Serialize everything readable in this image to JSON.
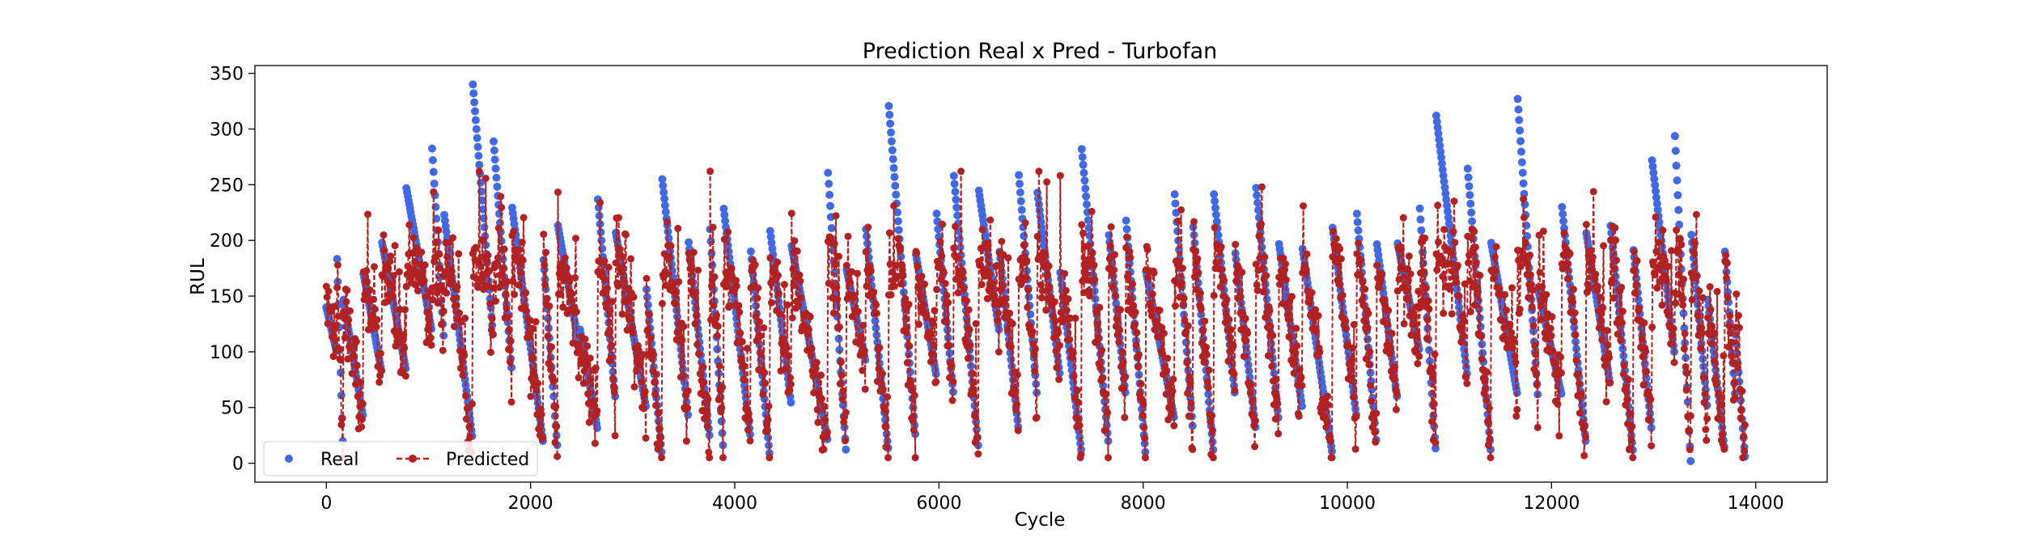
{
  "chart_data": {
    "type": "scatter",
    "title": "Prediction Real x Pred - Turbofan",
    "xlabel": "Cycle",
    "ylabel": "RUL",
    "xlim": [
      -700,
      14700
    ],
    "ylim": [
      -17,
      357
    ],
    "xticks": [
      0,
      2000,
      4000,
      6000,
      8000,
      10000,
      12000,
      14000
    ],
    "yticks": [
      0,
      50,
      100,
      150,
      200,
      250,
      300,
      350
    ],
    "grid": false,
    "legend_position": "lower-left",
    "n_points": 13900,
    "series": [
      {
        "name": "Real",
        "style": "markers",
        "color": "#4169e1",
        "description": "sawtooth segments: each engine's RUL decreases linearly from a start value to an end value over consecutive cycles",
        "segment_starts": [
          140,
          195,
          150,
          170,
          198,
          250,
          290,
          225,
          340,
          290,
          230,
          190,
          216,
          120,
          240,
          210,
          160,
          260,
          200,
          210,
          230,
          195,
          210,
          195,
          265,
          175,
          210,
          323,
          190,
          230,
          260,
          248,
          195,
          262,
          245,
          175,
          285,
          210,
          220,
          175,
          245,
          215,
          245,
          190,
          250,
          200,
          195,
          215,
          225,
          200,
          200,
          230,
          312,
          270,
          200,
          327,
          155,
          230,
          210,
          215,
          195,
          275,
          305,
          210,
          150,
          190,
          120
        ],
        "segment_ends": [
          100,
          20,
          40,
          80,
          85,
          120,
          110,
          20,
          110,
          80,
          20,
          15,
          100,
          30,
          60,
          50,
          10,
          40,
          20,
          10,
          25,
          5,
          50,
          20,
          8,
          90,
          10,
          25,
          80,
          60,
          15,
          120,
          30,
          60,
          80,
          10,
          20,
          60,
          10,
          40,
          30,
          10,
          60,
          30,
          40,
          50,
          10,
          40,
          20,
          60,
          100,
          5,
          80,
          10,
          60,
          55,
          60,
          20,
          70,
          10,
          30,
          100,
          0,
          50,
          10,
          60,
          0
        ],
        "segment_lengths": [
          100,
          60,
          200,
          180,
          230,
          250,
          120,
          280,
          200,
          180,
          300,
          140,
          220,
          170,
          170,
          300,
          150,
          260,
          210,
          130,
          260,
          190,
          210,
          350,
          180,
          190,
          220,
          260,
          200,
          170,
          240,
          200,
          190,
          180,
          220,
          210,
          260,
          170,
          190,
          280,
          180,
          200,
          210,
          200,
          220,
          230,
          290,
          240,
          190,
          200,
          220,
          160,
          300,
          230,
          260,
          200,
          230,
          230,
          240,
          220,
          180,
          220,
          160,
          160,
          170,
          100,
          100
        ]
      },
      {
        "name": "Predicted",
        "style": "markers-dashed-line",
        "color": "#b22222",
        "description": "noisy prediction tracking the real RUL, saturating near 180-200 at the start of each engine and dipping near 0 at the end"
      }
    ]
  }
}
